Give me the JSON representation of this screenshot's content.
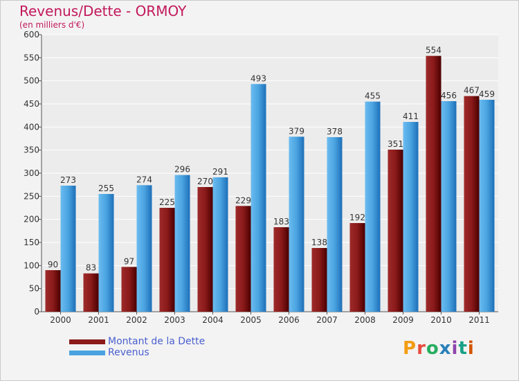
{
  "title": "Revenus/Dette - ORMOY",
  "subtitle": "(en milliers d'€)",
  "brand": "Proxiti",
  "colors": {
    "dette": "#8b1a1a",
    "revenus": "#4aa3e0",
    "title": "#c2185b",
    "legend_text": "#4a5fcf",
    "grid": "#ffffff",
    "background": "#f3f3f3"
  },
  "chart_data": {
    "type": "bar",
    "title": "Revenus/Dette - ORMOY",
    "subtitle": "(en milliers d'€)",
    "categories": [
      "2000",
      "2001",
      "2002",
      "2003",
      "2004",
      "2005",
      "2006",
      "2007",
      "2008",
      "2009",
      "2010",
      "2011"
    ],
    "series": [
      {
        "name": "Montant de la Dette",
        "values": [
          90,
          83,
          97,
          225,
          270,
          229,
          183,
          138,
          192,
          351,
          554,
          467
        ]
      },
      {
        "name": "Revenus",
        "values": [
          273,
          255,
          274,
          296,
          291,
          493,
          379,
          378,
          455,
          411,
          456,
          459
        ]
      }
    ],
    "ylim": [
      0,
      600
    ],
    "yticks": [
      0,
      50,
      100,
      150,
      200,
      250,
      300,
      350,
      400,
      450,
      500,
      550,
      600
    ],
    "grid": true,
    "legend_position": "bottom-left"
  }
}
